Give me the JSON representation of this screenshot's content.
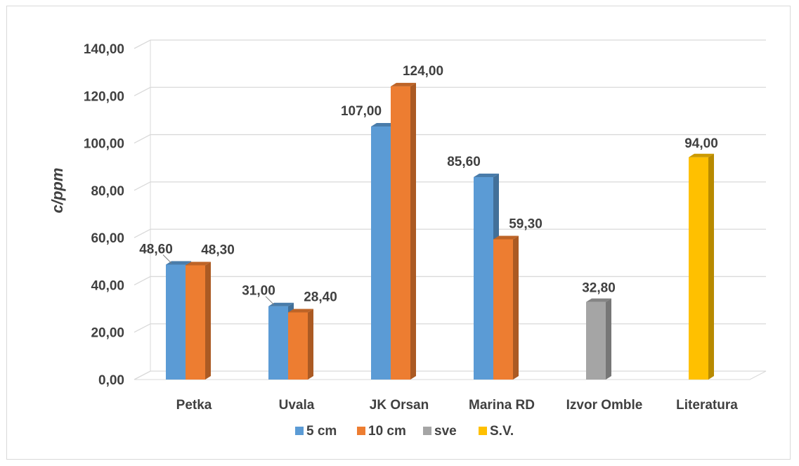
{
  "chart_data": {
    "type": "bar",
    "style": "3d-clustered-column",
    "title": "",
    "xlabel": "",
    "ylabel": "c/ppm",
    "ylim": [
      0,
      140
    ],
    "yticks": [
      0,
      20,
      40,
      60,
      80,
      100,
      120,
      140
    ],
    "ytick_labels": [
      "0,00",
      "20,00",
      "40,00",
      "60,00",
      "80,00",
      "100,00",
      "120,00",
      "140,00"
    ],
    "grid": true,
    "legend_position": "bottom",
    "categories": [
      "Petka",
      "Uvala",
      "JK Orsan",
      "Marina RD",
      "Izvor Omble",
      "Literatura"
    ],
    "series": [
      {
        "name": "5 cm",
        "color": "#5b9bd5",
        "values": [
          48.6,
          31.0,
          107.0,
          85.6,
          null,
          null
        ],
        "labels": [
          "48,60",
          "31,00",
          "107,00",
          "85,60",
          null,
          null
        ]
      },
      {
        "name": "10 cm",
        "color": "#ed7d31",
        "values": [
          48.3,
          28.4,
          124.0,
          59.3,
          null,
          null
        ],
        "labels": [
          "48,30",
          "28,40",
          "124,00",
          "59,30",
          null,
          null
        ]
      },
      {
        "name": "sve",
        "color": "#a5a5a5",
        "values": [
          null,
          null,
          null,
          null,
          32.8,
          null
        ],
        "labels": [
          null,
          null,
          null,
          null,
          "32,80",
          null
        ]
      },
      {
        "name": "S.V.",
        "color": "#ffc000",
        "values": [
          null,
          null,
          null,
          null,
          null,
          94.0
        ],
        "labels": [
          null,
          null,
          null,
          null,
          null,
          "94,00"
        ]
      }
    ]
  }
}
